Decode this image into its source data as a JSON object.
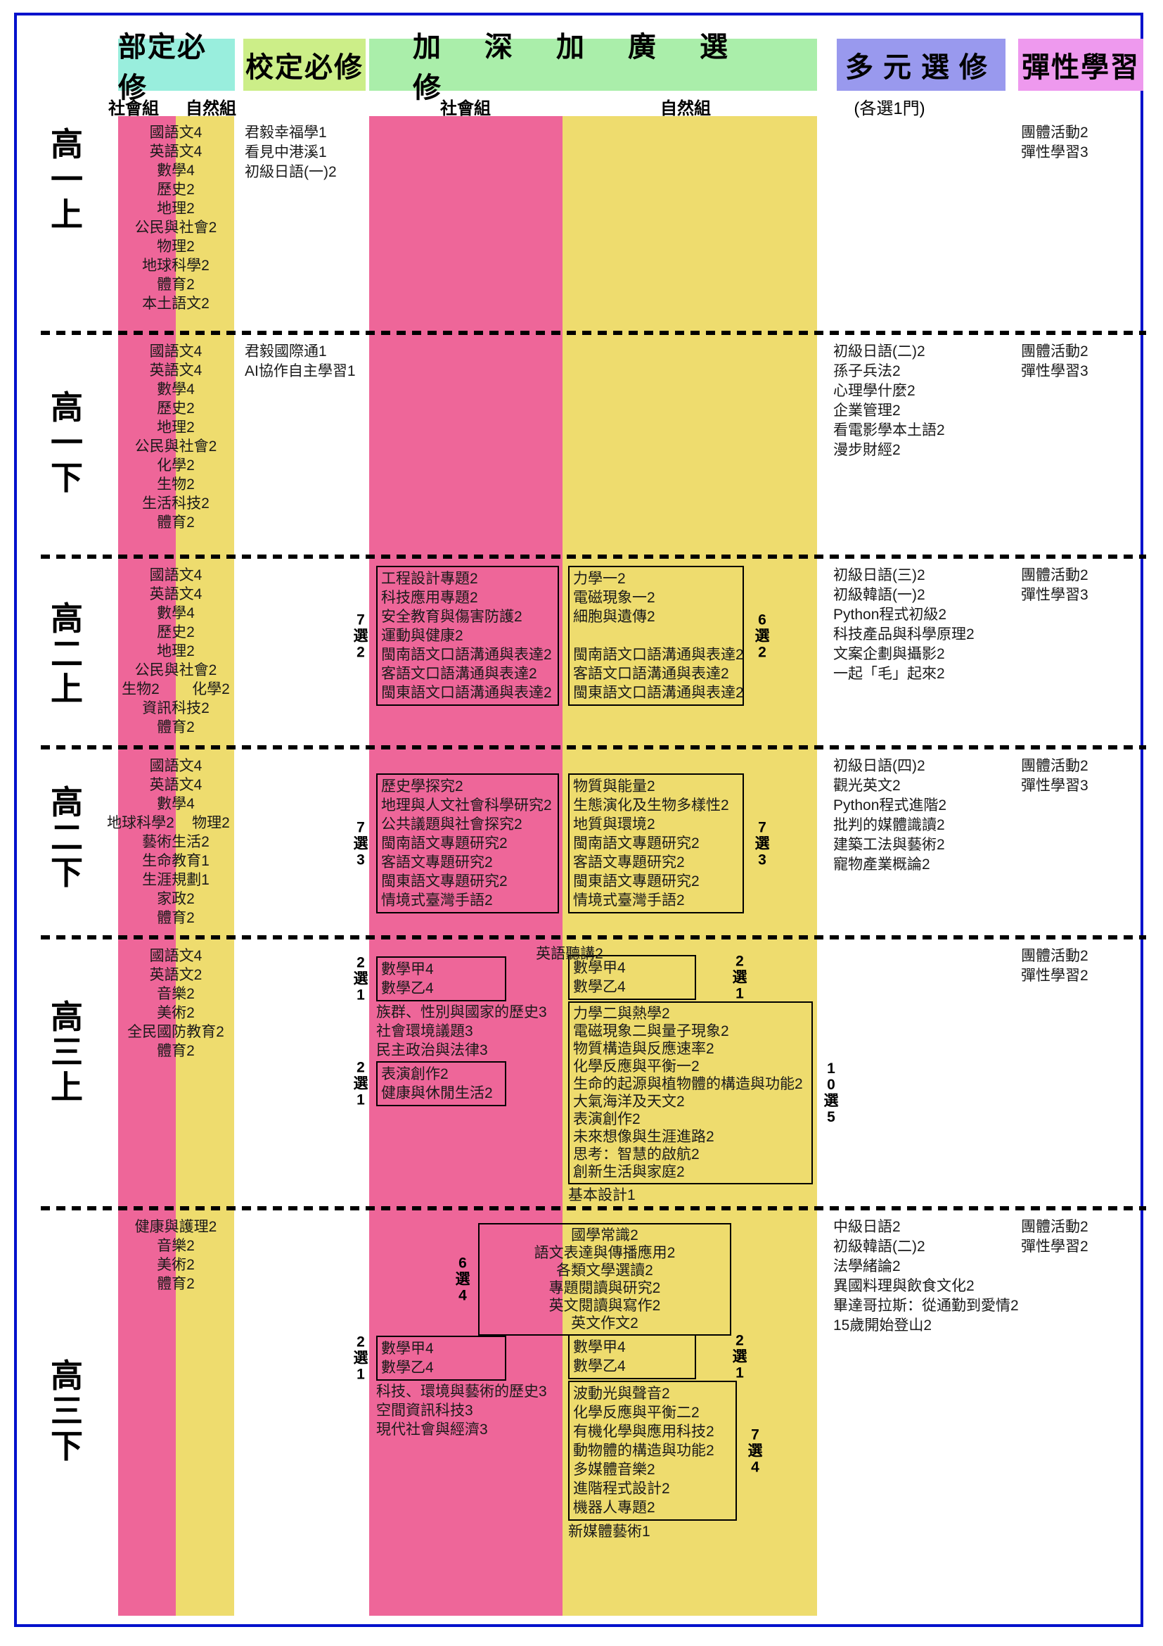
{
  "colors": {
    "frame_border": "#0011cc",
    "bureau_header_bg": "#99eedd",
    "school_header_bg": "#ccee88",
    "advanced_header_bg": "#aaeeaa",
    "multi_header_bg": "#9999ee",
    "flexible_header_bg": "#ee99ee",
    "social_band": "#ee6699",
    "natural_band": "#eedc6e"
  },
  "headers": [
    {
      "label": "部定必修"
    },
    {
      "label": "校定必修"
    },
    {
      "label": "加深加廣選修"
    },
    {
      "label": "多元選修"
    },
    {
      "label": "彈性學習"
    }
  ],
  "subheaders": {
    "bureau_social": "社會組",
    "bureau_natural": "自然組",
    "adv_social": "社會組",
    "adv_natural": "自然組",
    "multi_note": "(各選1門)"
  },
  "semesters": [
    {
      "name": "高一上",
      "bureau": [
        "國語文4",
        "英語文4",
        "數學4",
        "歷史2",
        "地理2",
        "公民與社會2",
        "物理2",
        "地球科學2",
        "體育2",
        "本土語文2"
      ],
      "school": [
        "君毅幸福學1",
        "看見中港溪1",
        "初級日語(一)2"
      ],
      "social": [],
      "natural": [],
      "center": [],
      "multi": [],
      "flexible": [
        "團體活動2",
        "彈性學習3"
      ]
    },
    {
      "name": "高一下",
      "bureau": [
        "國語文4",
        "英語文4",
        "數學4",
        "歷史2",
        "地理2",
        "公民與社會2",
        "化學2",
        "生物2",
        "生活科技2",
        "體育2"
      ],
      "school": [
        "君毅國際通1",
        "AI協作自主學習1"
      ],
      "social": [],
      "natural": [],
      "center": [],
      "multi": [
        "初級日語(二)2",
        "孫子兵法2",
        "心理學什麼2",
        "企業管理2",
        "看電影學本土語2",
        "漫步財經2"
      ],
      "flexible": [
        "團體活動2",
        "彈性學習3"
      ]
    },
    {
      "name": "高二上",
      "bureau": [
        "國語文4",
        "英語文4",
        "數學4",
        "歷史2",
        "地理2",
        "公民與社會2",
        {
          "left": "生物2",
          "right": "化學2"
        },
        "資訊科技2",
        "體育2"
      ],
      "school": [],
      "social": [
        {
          "kind": "box",
          "choose": "7選2",
          "items": [
            "工程設計專題2",
            "科技應用專題2",
            "安全教育與傷害防護2",
            "運動與健康2",
            "閩南語文口語溝通與表達2",
            "客語文口語溝通與表達2",
            "閩東語文口語溝通與表達2"
          ]
        }
      ],
      "natural": [
        {
          "kind": "box",
          "choose": "6選2",
          "items": [
            "力學一2",
            "電磁現象一2",
            "細胞與遺傳2",
            "",
            "閩南語文口語溝通與表達2",
            "客語文口語溝通與表達2",
            "閩東語文口語溝通與表達2"
          ]
        }
      ],
      "center": [],
      "multi": [
        "初級日語(三)2",
        "初級韓語(一)2",
        "Python程式初級2",
        "科技產品與科學原理2",
        "文案企劃與攝影2",
        "一起「毛」起來2"
      ],
      "flexible": [
        "團體活動2",
        "彈性學習3"
      ]
    },
    {
      "name": "高二下",
      "bureau": [
        "國語文4",
        "英語文4",
        "數學4",
        {
          "left": "地球科學2",
          "right": "物理2"
        },
        "藝術生活2",
        "生命教育1",
        "生涯規劃1",
        "家政2",
        "體育2"
      ],
      "school": [],
      "social": [
        {
          "kind": "box",
          "choose": "7選3",
          "items": [
            "歷史學探究2",
            "地理與人文社會科學研究2",
            "公共議題與社會探究2",
            "閩南語文專題研究2",
            "客語文專題研究2",
            "閩東語文專題研究2",
            "情境式臺灣手語2"
          ]
        }
      ],
      "natural": [
        {
          "kind": "box",
          "choose": "7選3",
          "items": [
            "物質與能量2",
            "生態演化及生物多樣性2",
            "地質與環境2",
            "閩南語文專題研究2",
            "客語文專題研究2",
            "閩東語文專題研究2",
            "情境式臺灣手語2"
          ]
        }
      ],
      "center": [],
      "multi": [
        "初級日語(四)2",
        "觀光英文2",
        "Python程式進階2",
        "批判的媒體識讀2",
        "建築工法與藝術2",
        "寵物產業概論2"
      ],
      "flexible": [
        "團體活動2",
        "彈性學習3"
      ]
    },
    {
      "name": "高三上",
      "bureau": [
        "國語文4",
        "英語文2",
        "音樂2",
        "美術2",
        "全民國防教育2",
        "體育2"
      ],
      "school": [],
      "social": [
        {
          "kind": "box",
          "choose": "2選1",
          "items": [
            "數學甲4",
            "數學乙4"
          ]
        },
        {
          "kind": "lines",
          "items": [
            "族群、性別與國家的歷史3",
            "社會環境議題3",
            "民主政治與法律3"
          ]
        },
        {
          "kind": "box",
          "choose": "2選1",
          "items": [
            "表演創作2",
            "健康與休閒生活2"
          ]
        }
      ],
      "natural": [
        {
          "kind": "box",
          "choose": "2選1",
          "items": [
            "數學甲4",
            "數學乙4"
          ]
        },
        {
          "kind": "box",
          "choose": "10選5",
          "items": [
            "力學二與熱學2",
            "電磁現象二與量子現象2",
            "物質構造與反應速率2",
            "化學反應與平衡一2",
            "生命的起源與植物體的構造與功能2",
            "大氣海洋及天文2",
            "表演創作2",
            "未來想像與生涯進路2",
            "思考：智慧的啟航2",
            "創新生活與家庭2"
          ]
        },
        {
          "kind": "lines",
          "items": [
            "基本設計1"
          ]
        }
      ],
      "center": [
        {
          "kind": "text",
          "text": "英語聽講2"
        }
      ],
      "multi": [],
      "flexible": [
        "團體活動2",
        "彈性學習2"
      ]
    },
    {
      "name": "高三下",
      "bureau": [
        "健康與護理2",
        "音樂2",
        "美術2",
        "體育2"
      ],
      "school": [],
      "social": [
        {
          "kind": "box",
          "choose": "2選1",
          "items": [
            "數學甲4",
            "數學乙4"
          ]
        },
        {
          "kind": "lines",
          "items": [
            "科技、環境與藝術的歷史3",
            "空間資訊科技3",
            "現代社會與經濟3"
          ]
        }
      ],
      "natural": [
        {
          "kind": "box",
          "choose": "2選1",
          "items": [
            "數學甲4",
            "數學乙4"
          ]
        },
        {
          "kind": "box",
          "choose": "7選4",
          "items": [
            "波動光與聲音2",
            "化學反應與平衡二2",
            "有機化學與應用科技2",
            "動物體的構造與功能2",
            "多媒體音樂2",
            "進階程式設計2",
            "機器人專題2"
          ]
        },
        {
          "kind": "lines",
          "items": [
            "新媒體藝術1"
          ]
        }
      ],
      "center": [
        {
          "kind": "box",
          "choose": "6選4",
          "items": [
            "國學常識2",
            "語文表達與傳播應用2",
            "各類文學選讀2",
            "專題閱讀與研究2",
            "英文閱讀與寫作2",
            "英文作文2"
          ]
        }
      ],
      "multi": [
        "中級日語2",
        "初級韓語(二)2",
        "法學緒論2",
        "異國料理與飲食文化2",
        "畢達哥拉斯：從通勤到愛情2",
        "15歲開始登山2"
      ],
      "flexible": [
        "團體活動2",
        "彈性學習2"
      ]
    }
  ]
}
